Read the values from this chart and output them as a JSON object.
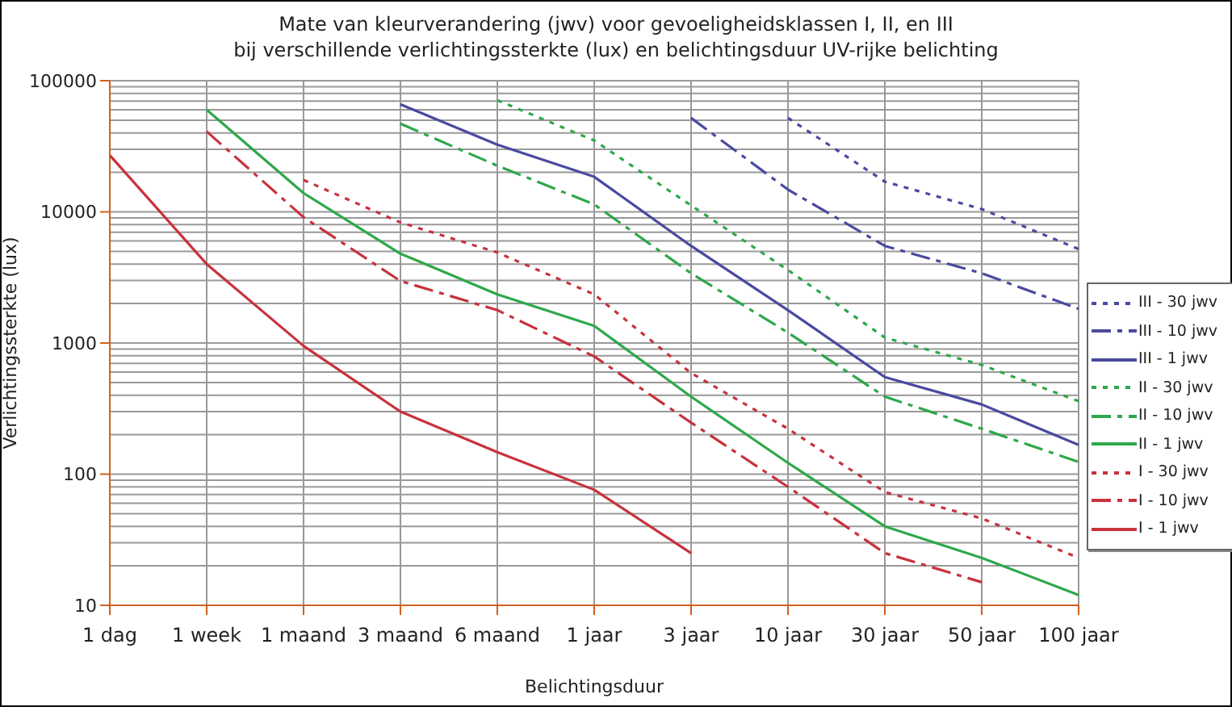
{
  "chart_data": {
    "type": "line",
    "title": "Mate van kleurverandering (jwv) voor gevoeligheidsklassen I, II, en III",
    "subtitle": "bij verschillende verlichtingssterkte (lux) en belichtingsduur UV-rijke belichting",
    "xlabel": "Belichtingsduur",
    "ylabel": "Verlichtingssterkte (lux)",
    "categories": [
      "1 dag",
      "1 week",
      "1 maand",
      "3 maand",
      "6 maand",
      "1 jaar",
      "3 jaar",
      "10 jaar",
      "30 jaar",
      "50 jaar",
      "100 jaar"
    ],
    "ylim": [
      10,
      100000
    ],
    "yticks": [
      10,
      100,
      1000,
      10000,
      100000
    ],
    "log": "y",
    "grid": true,
    "legend": "right",
    "marker": "none",
    "series": [
      {
        "name": "III - 30 jwv",
        "color": "#4a4aa0",
        "line_style": "dotted",
        "values": [
          null,
          null,
          null,
          null,
          null,
          null,
          null,
          52000,
          17000,
          10500,
          5200
        ]
      },
      {
        "name": "III - 10 jwv",
        "color": "#4a4aa0",
        "line_style": "dashed",
        "values": [
          null,
          null,
          null,
          null,
          null,
          null,
          52000,
          14800,
          5500,
          3400,
          1820
        ]
      },
      {
        "name": "III - 1 jwv",
        "color": "#4a4aa0",
        "line_style": "solid",
        "values": [
          null,
          null,
          null,
          66000,
          32500,
          18500,
          5500,
          1780,
          550,
          340,
          167
        ]
      },
      {
        "name": "II - 30 jwv",
        "color": "#2ea84a",
        "line_style": "dotted",
        "values": [
          null,
          null,
          null,
          null,
          71000,
          35000,
          11200,
          3600,
          1100,
          680,
          360
        ]
      },
      {
        "name": "II - 10 jwv",
        "color": "#2ea84a",
        "line_style": "dashed",
        "values": [
          null,
          null,
          null,
          47000,
          22500,
          11400,
          3400,
          1200,
          390,
          222,
          124
        ]
      },
      {
        "name": "II - 1 jwv",
        "color": "#2ea84a",
        "line_style": "solid",
        "values": [
          null,
          60000,
          13900,
          4800,
          2350,
          1350,
          390,
          122,
          40,
          23,
          12
        ]
      },
      {
        "name": "I - 30 jwv",
        "color": "#c8323c",
        "line_style": "dotted",
        "values": [
          null,
          null,
          17500,
          8300,
          4900,
          2350,
          590,
          222,
          73,
          46,
          23
        ]
      },
      {
        "name": "I - 10 jwv",
        "color": "#c8323c",
        "line_style": "dashed",
        "values": [
          null,
          41000,
          9100,
          2970,
          1780,
          790,
          247,
          80,
          25,
          15,
          null
        ]
      },
      {
        "name": "I - 1 jwv",
        "color": "#c8323c",
        "line_style": "solid",
        "values": [
          27000,
          4000,
          950,
          300,
          147,
          76,
          25,
          null,
          null,
          null,
          null
        ]
      }
    ]
  }
}
